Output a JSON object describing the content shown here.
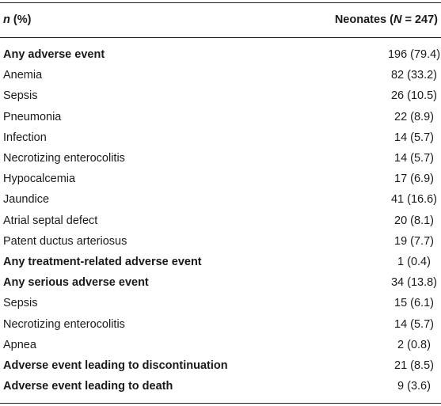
{
  "header": {
    "col1_italic": "n",
    "col1_rest": " (%)",
    "col2_prefix": "Neonates (",
    "col2_italic": "N",
    "col2_suffix": " = 247)"
  },
  "rows": [
    {
      "label": "Any adverse event",
      "value": "196 (79.4)",
      "bold": true
    },
    {
      "label": "Anemia",
      "value": "82 (33.2)",
      "bold": false
    },
    {
      "label": "Sepsis",
      "value": "26 (10.5)",
      "bold": false
    },
    {
      "label": "Pneumonia",
      "value": "22 (8.9)",
      "bold": false
    },
    {
      "label": "Infection",
      "value": "14 (5.7)",
      "bold": false
    },
    {
      "label": "Necrotizing enterocolitis",
      "value": "14 (5.7)",
      "bold": false
    },
    {
      "label": "Hypocalcemia",
      "value": "17 (6.9)",
      "bold": false
    },
    {
      "label": "Jaundice",
      "value": "41 (16.6)",
      "bold": false
    },
    {
      "label": "Atrial septal defect",
      "value": "20 (8.1)",
      "bold": false
    },
    {
      "label": "Patent ductus arteriosus",
      "value": "19 (7.7)",
      "bold": false
    },
    {
      "label": "Any treatment-related adverse event",
      "value": "1 (0.4)",
      "bold": true
    },
    {
      "label": "Any serious adverse event",
      "value": "34 (13.8)",
      "bold": true
    },
    {
      "label": "Sepsis",
      "value": "15 (6.1)",
      "bold": false
    },
    {
      "label": "Necrotizing enterocolitis",
      "value": "14 (5.7)",
      "bold": false
    },
    {
      "label": "Apnea",
      "value": "2 (0.8)",
      "bold": false
    },
    {
      "label": "Adverse event leading to discontinuation",
      "value": "21 (8.5)",
      "bold": true
    },
    {
      "label": "Adverse event leading to death",
      "value": "9 (3.6)",
      "bold": true
    }
  ]
}
